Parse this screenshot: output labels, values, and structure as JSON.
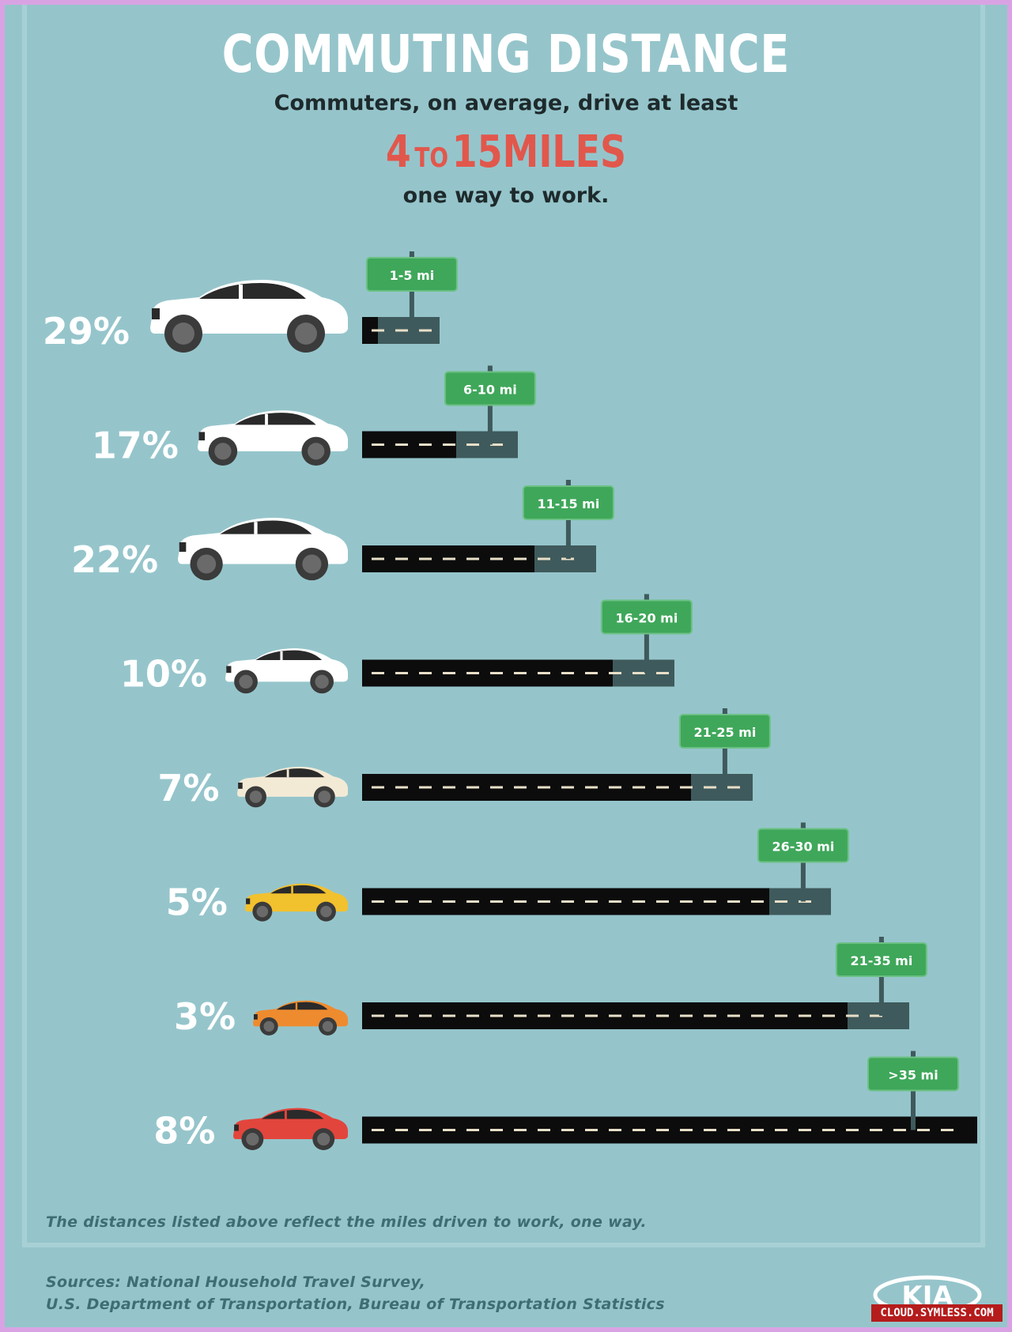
{
  "header": {
    "title": "COMMUTING DISTANCE",
    "subtitle": "Commuters, on average, drive at least",
    "highlight_from": "4",
    "highlight_to_word": "TO",
    "highlight_to": "15",
    "highlight_unit": "MILES",
    "subtitle2": "one way to work."
  },
  "chart_data": {
    "type": "bar",
    "title": "COMMUTING DISTANCE",
    "categories": [
      "1-5 mi",
      "6-10 mi",
      "11-15 mi",
      "16-20 mi",
      "21-25 mi",
      "26-30 mi",
      "21-35 mi",
      ">35 mi"
    ],
    "values": [
      29,
      17,
      22,
      10,
      7,
      5,
      3,
      8
    ],
    "value_labels": [
      "29%",
      "17%",
      "22%",
      "10%",
      "7%",
      "5%",
      "3%",
      "8%"
    ],
    "car_colors": [
      "#ffffff",
      "#ffffff",
      "#ffffff",
      "#ffffff",
      "#f3ead6",
      "#f2c12e",
      "#ee8b2f",
      "#e2453c"
    ],
    "unit": "%"
  },
  "colors": {
    "background": "#95c5cb",
    "road": "#0c0c0c",
    "road_end": "#3f5a5c",
    "sign": "#3fa75a",
    "accent": "#e2574c"
  },
  "footnote": "The distances listed above reflect the miles driven to work, one way.",
  "sources": {
    "line1": "Sources: National Household Travel Survey,",
    "line2": "U.S. Department of Transportation, Bureau of Transportation Statistics"
  },
  "logo_text": "KIA",
  "watermark": "CLOUD.SYMLESS.COM"
}
